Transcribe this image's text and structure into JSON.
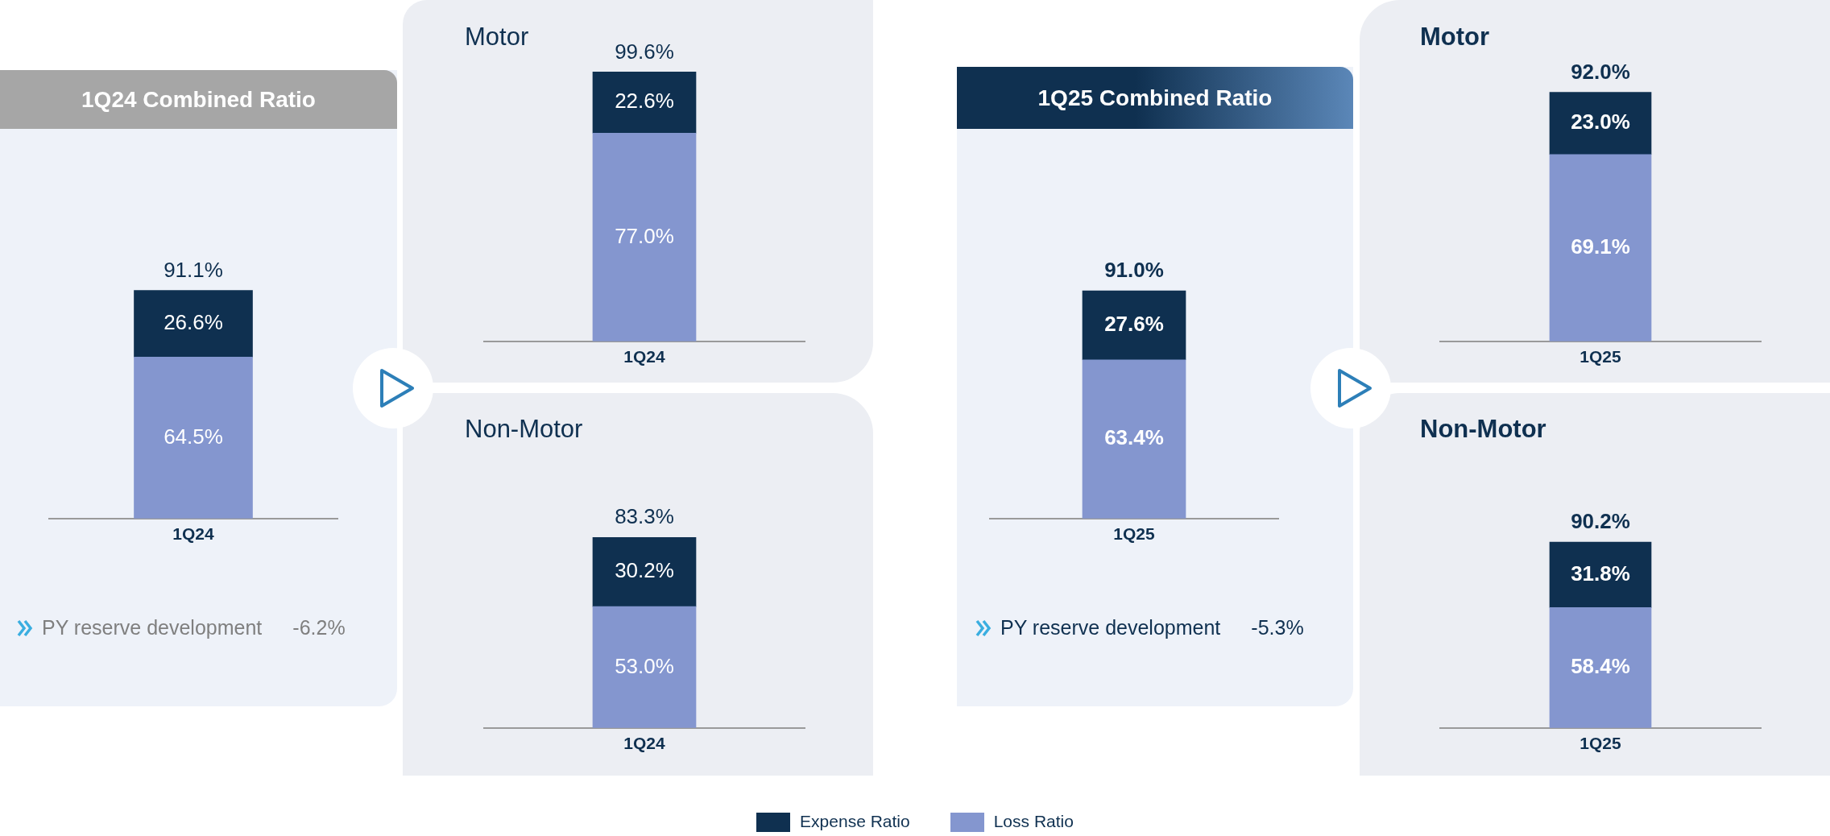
{
  "chart_data": [
    {
      "type": "bar",
      "title": "1Q24 Combined Ratio",
      "categories": [
        "1Q24"
      ],
      "stacked": true,
      "legend": "bottom",
      "series": [
        {
          "name": "Loss Ratio",
          "color": "#8496cf",
          "values": [
            64.5
          ],
          "value_labels": [
            "64.5%"
          ]
        },
        {
          "name": "Expense Ratio",
          "color": "#0f3050",
          "values": [
            26.6
          ],
          "value_labels": [
            "26.6%"
          ]
        }
      ],
      "totals": [
        "91.1%"
      ],
      "annotations": [
        "PY reserve development",
        "-6.2%"
      ]
    },
    {
      "type": "bar",
      "title": "Motor",
      "categories": [
        "1Q24"
      ],
      "stacked": true,
      "series": [
        {
          "color": "#8496cf",
          "values": [
            77.0
          ],
          "value_labels": [
            "77.0%"
          ]
        },
        {
          "color": "#0f3050",
          "values": [
            22.6
          ],
          "value_labels": [
            "22.6%"
          ]
        }
      ],
      "totals": [
        "99.6%"
      ]
    },
    {
      "type": "bar",
      "title": "Non-Motor",
      "categories": [
        "1Q24"
      ],
      "stacked": true,
      "series": [
        {
          "color": "#8496cf",
          "values": [
            53.0
          ],
          "value_labels": [
            "53.0%"
          ]
        },
        {
          "color": "#0f3050",
          "values": [
            30.2
          ],
          "value_labels": [
            "30.2%"
          ]
        }
      ],
      "totals": [
        "83.3%"
      ]
    },
    {
      "type": "bar",
      "title": "1Q25 Combined Ratio",
      "categories": [
        "1Q25"
      ],
      "stacked": true,
      "series": [
        {
          "color": "#8496cf",
          "values": [
            63.4
          ],
          "value_labels": [
            "63.4%"
          ]
        },
        {
          "color": "#0f3050",
          "values": [
            27.6
          ],
          "value_labels": [
            "27.6%"
          ]
        }
      ],
      "totals": [
        "91.0%"
      ],
      "annotations": [
        "PY reserve development",
        "-5.3%"
      ]
    },
    {
      "type": "bar",
      "title": "Motor",
      "categories": [
        "1Q25"
      ],
      "stacked": true,
      "series": [
        {
          "color": "#8496cf",
          "values": [
            69.1
          ],
          "value_labels": [
            "69.1%"
          ]
        },
        {
          "color": "#0f3050",
          "values": [
            23.0
          ],
          "value_labels": [
            "23.0%"
          ]
        }
      ],
      "totals": [
        "92.0%"
      ]
    },
    {
      "type": "bar",
      "title": "Non-Motor",
      "categories": [
        "1Q25"
      ],
      "stacked": true,
      "series": [
        {
          "color": "#8496cf",
          "values": [
            58.4
          ],
          "value_labels": [
            "58.4%"
          ]
        },
        {
          "color": "#0f3050",
          "values": [
            31.8
          ],
          "value_labels": [
            "31.8%"
          ]
        }
      ],
      "totals": [
        "90.2%"
      ]
    }
  ]
}
